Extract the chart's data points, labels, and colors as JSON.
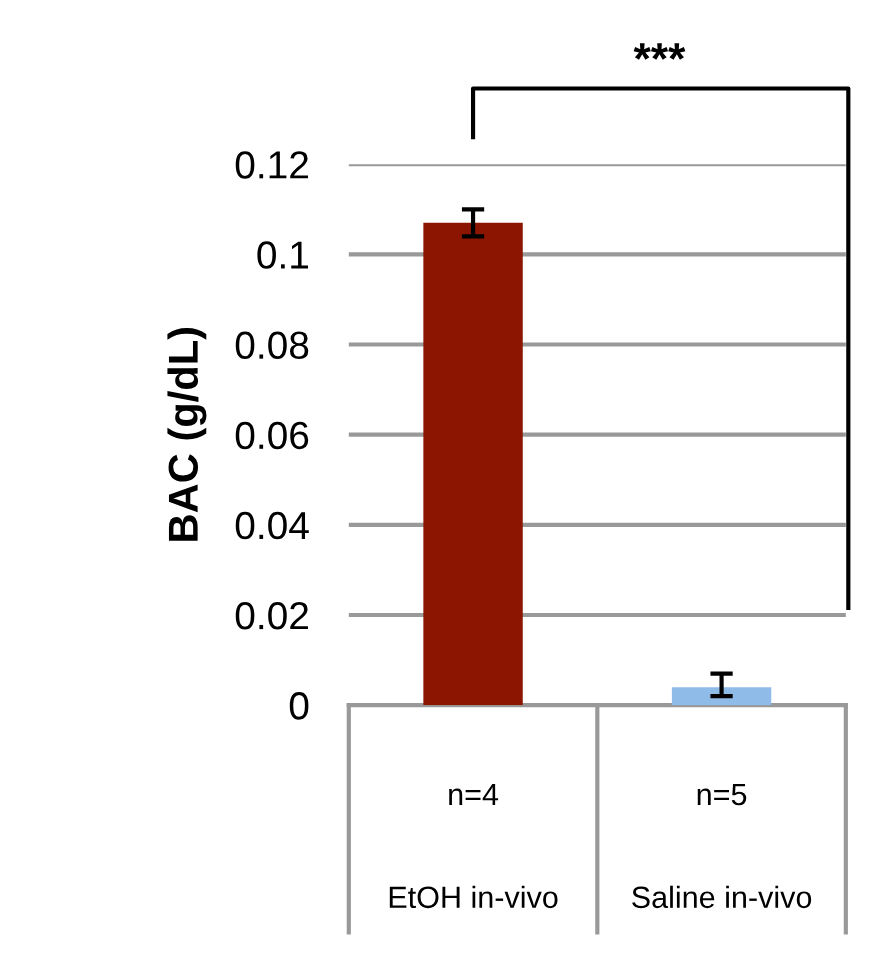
{
  "chart_data": {
    "type": "bar",
    "ylabel": "BAC (g/dL)",
    "categories": [
      "EtOH in-vivo",
      "Saline in-vivo"
    ],
    "values": [
      0.107,
      0.004
    ],
    "colors": [
      "#8b1500",
      "#8ebbe8"
    ],
    "errors": [
      [
        0.104,
        0.11
      ],
      [
        0.002,
        0.007
      ]
    ],
    "ylim": [
      0,
      0.12
    ],
    "yticks": [
      0,
      0.02,
      0.04,
      0.06,
      0.08,
      0.1,
      0.12
    ],
    "grid": "y",
    "annotations": [
      "***",
      "n=4",
      "n=5"
    ]
  }
}
